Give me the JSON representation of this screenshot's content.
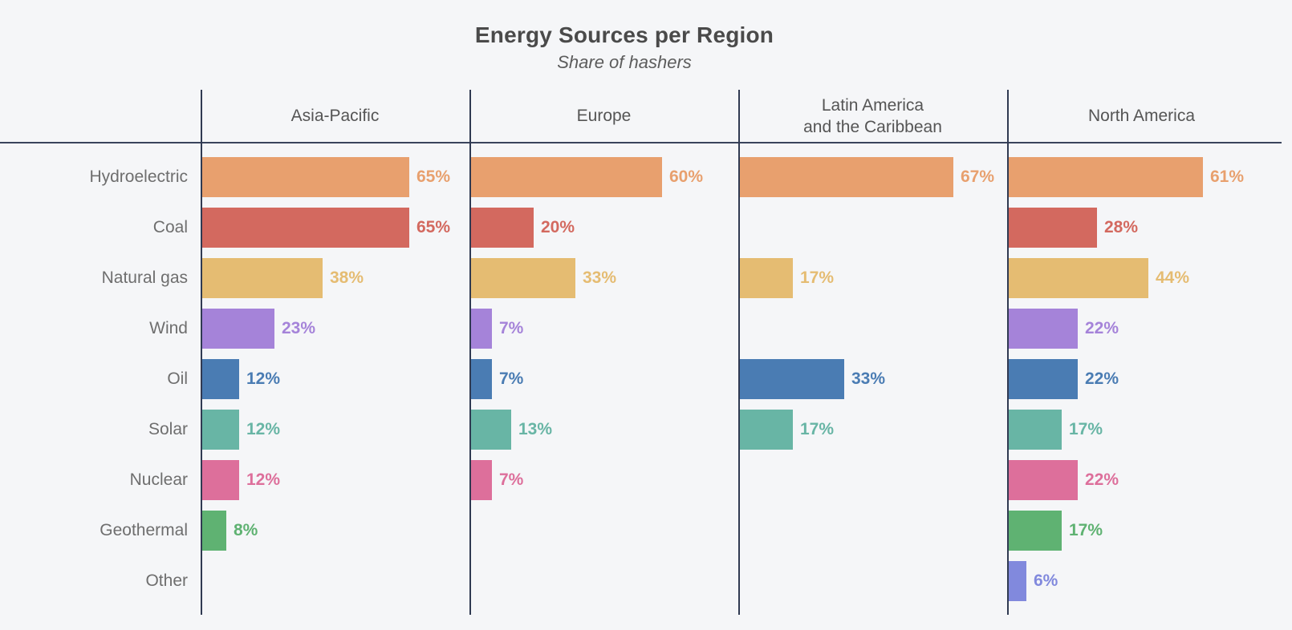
{
  "chart_data": {
    "type": "bar",
    "orientation": "horizontal",
    "unit": "%",
    "title": "Energy Sources per Region",
    "subtitle": "Share of hashers",
    "value_labels": "end-of-bar, colored same as bar",
    "legend": "none",
    "categories": [
      "Hydroelectric",
      "Coal",
      "Natural gas",
      "Wind",
      "Oil",
      "Solar",
      "Nuclear",
      "Geothermal",
      "Other"
    ],
    "category_colors": {
      "Hydroelectric": "#e8a06e",
      "Coal": "#d3695f",
      "Natural gas": "#e5bc72",
      "Wind": "#a583d9",
      "Oil": "#4a7cb3",
      "Solar": "#68b5a5",
      "Nuclear": "#dd6f9b",
      "Geothermal": "#5fb272",
      "Other": "#8189dd"
    },
    "series": [
      {
        "name": "Asia-Pacific",
        "header": "Asia-Pacific",
        "values": [
          65,
          65,
          38,
          23,
          12,
          12,
          12,
          8,
          null
        ]
      },
      {
        "name": "Europe",
        "header": "Europe",
        "values": [
          60,
          20,
          33,
          7,
          7,
          13,
          7,
          null,
          null
        ]
      },
      {
        "name": "Latin America and the Caribbean",
        "header": "Latin America\nand the Caribbean",
        "values": [
          67,
          null,
          17,
          null,
          33,
          17,
          null,
          null,
          null
        ]
      },
      {
        "name": "North America",
        "header": "North America",
        "values": [
          61,
          28,
          44,
          22,
          22,
          17,
          22,
          17,
          6
        ]
      }
    ]
  },
  "styles": {
    "background": "#f5f6f8",
    "rule_color": "#3a445c",
    "divider_color": "#303a52",
    "title_color": "#4a4a4a",
    "subtitle_color": "#5c5c5c",
    "header_color": "#555555",
    "row_label_color": "#6e6e6e"
  }
}
